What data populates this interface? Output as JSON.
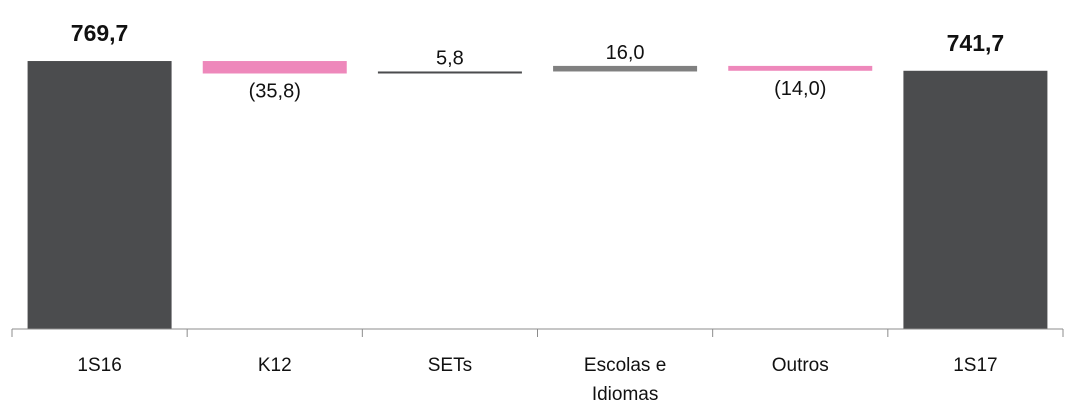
{
  "chart_data": {
    "type": "bar",
    "subtype": "waterfall",
    "categories": [
      "1S16",
      "K12",
      "SETs",
      "Escolas e Idiomas",
      "Outros",
      "1S17"
    ],
    "category_lines": [
      [
        "1S16"
      ],
      [
        "K12"
      ],
      [
        "SETs"
      ],
      [
        "Escolas e",
        "Idiomas"
      ],
      [
        "Outros"
      ],
      [
        "1S17"
      ]
    ],
    "values": [
      769.7,
      -35.8,
      5.8,
      16.0,
      -14.0,
      741.7
    ],
    "data_labels": [
      "769,7",
      "(35,8)",
      "5,8",
      "16,0",
      "(14,0)",
      "741,7"
    ],
    "bar_kinds": [
      "total",
      "delta",
      "delta",
      "delta",
      "delta",
      "total"
    ],
    "ylim": [
      0,
      810
    ],
    "grid": false,
    "legend": "none",
    "colors": {
      "total": "#4b4c4e",
      "decrease": "#ee88bb",
      "increase": "#4b4c4e",
      "increase_alt": "#808080",
      "axis": "#8c8c8c",
      "text": "#111111"
    },
    "bar_colors": [
      "#4b4c4e",
      "#ee88bb",
      "#4b4c4e",
      "#808080",
      "#ee88bb",
      "#4b4c4e"
    ]
  }
}
